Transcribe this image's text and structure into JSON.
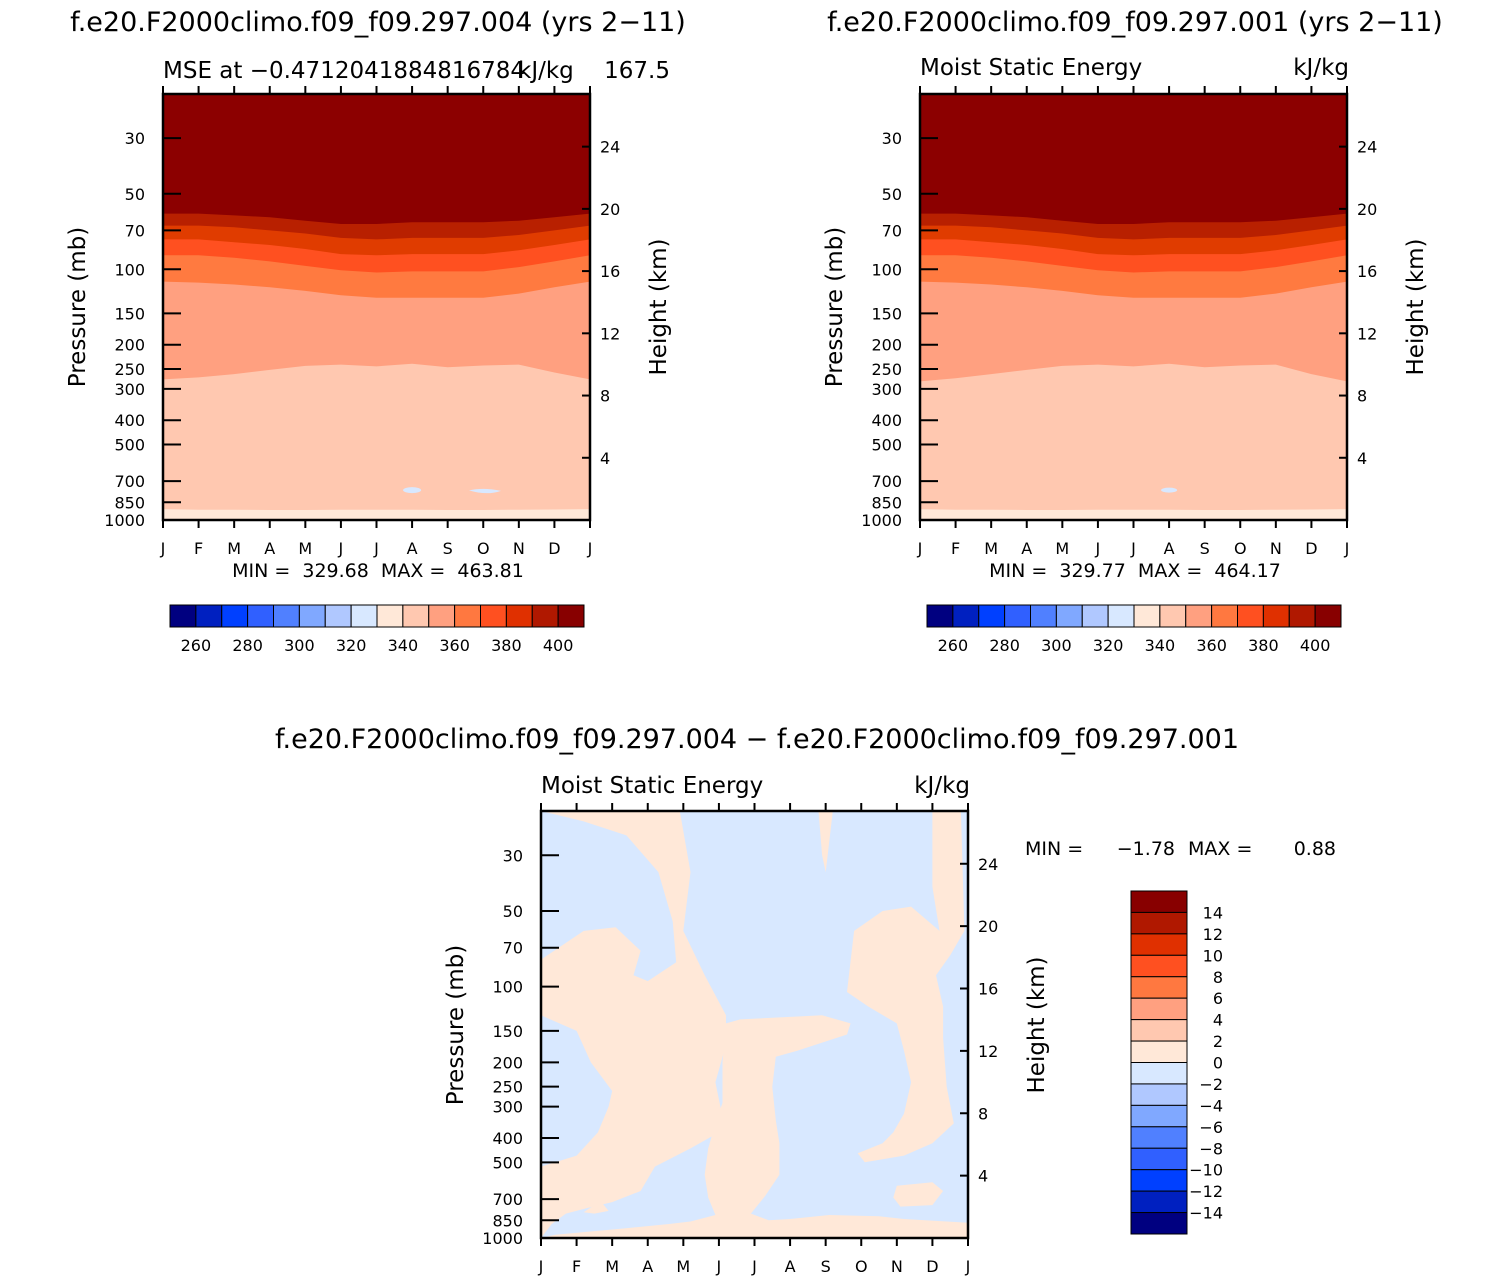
{
  "chart_data": [
    {
      "type": "heatmap",
      "title": "f.e20.F2000climo.f09_f09.297.004 (yrs 2−11)",
      "subtitle_left": "MSE at −0.4712041884816784",
      "subtitle_right": "kJ/kg",
      "subtitle_right2": "167.5",
      "ylabel": "Pressure (mb)",
      "y2label": "Height (km)",
      "x_ticks": [
        "J",
        "F",
        "M",
        "A",
        "M",
        "J",
        "J",
        "A",
        "S",
        "O",
        "N",
        "D",
        "J"
      ],
      "y_ticks": [
        "30",
        "50",
        "70",
        "100",
        "150",
        "200",
        "250",
        "300",
        "400",
        "500",
        "700",
        "850",
        "1000"
      ],
      "y_tick_values": [
        30,
        50,
        70,
        100,
        150,
        200,
        250,
        300,
        400,
        500,
        700,
        850,
        1000
      ],
      "y2_ticks": [
        "24",
        "20",
        "16",
        "12",
        "8",
        "4"
      ],
      "ylim": [
        1000,
        20
      ],
      "stats": "MIN =  329.68  MAX =  463.81",
      "colorbar_labels": [
        "260",
        "280",
        "300",
        "320",
        "340",
        "360",
        "380",
        "400"
      ],
      "colorbar_colors": [
        "#000080",
        "#0020c0",
        "#0040ff",
        "#3060ff",
        "#5080ff",
        "#80a8ff",
        "#b0c8ff",
        "#d8e8ff",
        "#ffe8d8",
        "#ffc8b0",
        "#ffa080",
        "#ff7840",
        "#ff5020",
        "#e03000",
        "#b01800",
        "#880000"
      ],
      "layers": [
        {
          "level": "400+",
          "color": "#8c0000",
          "boundary_p": [
            55,
            55,
            56,
            57,
            58,
            58,
            58,
            57,
            57,
            57,
            57,
            56,
            55
          ]
        },
        {
          "level": "390-400",
          "color": "#b82000",
          "boundary_p": [
            60,
            60,
            61,
            62,
            64,
            66,
            66,
            65,
            65,
            65,
            64,
            62,
            60
          ]
        },
        {
          "level": "380-390",
          "color": "#e03c00",
          "boundary_p": [
            67,
            67,
            68,
            70,
            72,
            75,
            76,
            75,
            75,
            75,
            73,
            70,
            67
          ]
        },
        {
          "level": "370-380",
          "color": "#ff5020",
          "boundary_p": [
            76,
            76,
            78,
            80,
            83,
            87,
            88,
            87,
            87,
            87,
            84,
            80,
            76
          ]
        },
        {
          "level": "360-370",
          "color": "#ff7a40",
          "boundary_p": [
            88,
            88,
            90,
            93,
            97,
            101,
            103,
            102,
            102,
            102,
            98,
            93,
            88
          ]
        },
        {
          "level": "350-360",
          "color": "#ffa080",
          "boundary_p": [
            112,
            113,
            115,
            118,
            122,
            127,
            130,
            130,
            130,
            130,
            125,
            118,
            112
          ]
        },
        {
          "level": "340-350",
          "color": "#ffc8b0",
          "boundary_p": [
            275,
            270,
            262,
            252,
            243,
            240,
            244,
            238,
            246,
            242,
            240,
            258,
            275
          ]
        },
        {
          "level": "330-340",
          "color": "#ffe8d8",
          "boundary_p": [
            905,
            910,
            910,
            912,
            912,
            910,
            910,
            910,
            912,
            912,
            910,
            908,
            905
          ]
        },
        {
          "level": "340-350 (surface)",
          "color": "#ffc8b0",
          "boundary_p": [
            1000,
            1000,
            1000,
            1000,
            1000,
            1000,
            1000,
            1000,
            1000,
            1000,
            1000,
            1000,
            1000
          ]
        }
      ]
    },
    {
      "type": "heatmap",
      "title": "f.e20.F2000climo.f09_f09.297.001 (yrs 2−11)",
      "subtitle_left": "Moist Static Energy",
      "subtitle_right": "kJ/kg",
      "ylabel": "Pressure (mb)",
      "y2label": "Height (km)",
      "x_ticks": [
        "J",
        "F",
        "M",
        "A",
        "M",
        "J",
        "J",
        "A",
        "S",
        "O",
        "N",
        "D",
        "J"
      ],
      "y_ticks": [
        "30",
        "50",
        "70",
        "100",
        "150",
        "200",
        "250",
        "300",
        "400",
        "500",
        "700",
        "850",
        "1000"
      ],
      "y_tick_values": [
        30,
        50,
        70,
        100,
        150,
        200,
        250,
        300,
        400,
        500,
        700,
        850,
        1000
      ],
      "y2_ticks": [
        "24",
        "20",
        "16",
        "12",
        "8",
        "4"
      ],
      "ylim": [
        1000,
        20
      ],
      "stats": "MIN =  329.77  MAX =  464.17",
      "colorbar_labels": [
        "260",
        "280",
        "300",
        "320",
        "340",
        "360",
        "380",
        "400"
      ],
      "colorbar_colors": [
        "#000080",
        "#0020c0",
        "#0040ff",
        "#3060ff",
        "#5080ff",
        "#80a8ff",
        "#b0c8ff",
        "#d8e8ff",
        "#ffe8d8",
        "#ffc8b0",
        "#ffa080",
        "#ff7840",
        "#ff5020",
        "#e03000",
        "#b01800",
        "#880000"
      ],
      "layers": [
        {
          "level": "400+",
          "color": "#8c0000",
          "boundary_p": [
            55,
            55,
            56,
            57,
            58,
            58,
            58,
            57,
            57,
            57,
            57,
            56,
            55
          ]
        },
        {
          "level": "390-400",
          "color": "#b82000",
          "boundary_p": [
            60,
            60,
            61,
            62,
            64,
            66,
            66,
            65,
            65,
            65,
            64,
            62,
            60
          ]
        },
        {
          "level": "380-390",
          "color": "#e03c00",
          "boundary_p": [
            67,
            67,
            68,
            70,
            72,
            75,
            76,
            75,
            75,
            75,
            73,
            70,
            67
          ]
        },
        {
          "level": "370-380",
          "color": "#ff5020",
          "boundary_p": [
            76,
            76,
            78,
            80,
            83,
            87,
            88,
            87,
            87,
            87,
            84,
            80,
            76
          ]
        },
        {
          "level": "360-370",
          "color": "#ff7a40",
          "boundary_p": [
            88,
            88,
            90,
            93,
            97,
            101,
            103,
            102,
            102,
            102,
            98,
            93,
            88
          ]
        },
        {
          "level": "350-360",
          "color": "#ffa080",
          "boundary_p": [
            112,
            113,
            115,
            118,
            122,
            127,
            130,
            130,
            130,
            130,
            125,
            118,
            112
          ]
        },
        {
          "level": "340-350",
          "color": "#ffc8b0",
          "boundary_p": [
            280,
            272,
            262,
            252,
            243,
            240,
            244,
            238,
            246,
            242,
            240,
            262,
            280
          ]
        },
        {
          "level": "330-340",
          "color": "#ffe8d8",
          "boundary_p": [
            905,
            910,
            910,
            912,
            912,
            910,
            910,
            910,
            912,
            912,
            910,
            908,
            905
          ]
        },
        {
          "level": "340-350 (surface)",
          "color": "#ffc8b0",
          "boundary_p": [
            1000,
            1000,
            1000,
            1000,
            1000,
            1000,
            1000,
            1000,
            1000,
            1000,
            1000,
            1000,
            1000
          ]
        }
      ]
    },
    {
      "type": "heatmap",
      "title": "f.e20.F2000climo.f09_f09.297.004 − f.e20.F2000climo.f09_f09.297.001",
      "subtitle_left": "Moist Static Energy",
      "subtitle_right": "kJ/kg",
      "ylabel": "Pressure (mb)",
      "y2label": "Height (km)",
      "x_ticks": [
        "J",
        "F",
        "M",
        "A",
        "M",
        "J",
        "J",
        "A",
        "S",
        "O",
        "N",
        "D",
        "J"
      ],
      "y_ticks": [
        "30",
        "50",
        "70",
        "100",
        "150",
        "200",
        "250",
        "300",
        "400",
        "500",
        "700",
        "850",
        "1000"
      ],
      "y_tick_values": [
        30,
        50,
        70,
        100,
        150,
        200,
        250,
        300,
        400,
        500,
        700,
        850,
        1000
      ],
      "y2_ticks": [
        "24",
        "20",
        "16",
        "12",
        "8",
        "4"
      ],
      "ylim": [
        1000,
        20
      ],
      "stats_min_label": "MIN =",
      "stats_min": "−1.78",
      "stats_max_label": "MAX =",
      "stats_max": "0.88",
      "background_level": "−2 to 0",
      "background_color": "#d8e8ff",
      "positive_level": "0 to 2",
      "positive_color": "#ffe8d8",
      "positive_regions": [
        [
          [
            0,
            20
          ],
          [
            3.9,
            20
          ],
          [
            4.2,
            35
          ],
          [
            4.0,
            60
          ],
          [
            4.6,
            90
          ],
          [
            5.2,
            130
          ],
          [
            5.2,
            170
          ],
          [
            4.9,
            240
          ],
          [
            5.1,
            330
          ],
          [
            5.0,
            380
          ],
          [
            4.2,
            440
          ],
          [
            3.2,
            520
          ],
          [
            2.8,
            650
          ],
          [
            2.0,
            720
          ],
          [
            1.3,
            760
          ],
          [
            0.7,
            800
          ],
          [
            0.3,
            880
          ],
          [
            0,
            1000
          ],
          [
            0,
            520
          ],
          [
            1.0,
            470
          ],
          [
            1.6,
            380
          ],
          [
            1.9,
            300
          ],
          [
            2.0,
            260
          ],
          [
            1.4,
            200
          ],
          [
            1.0,
            150
          ],
          [
            0,
            130
          ],
          [
            0,
            78
          ],
          [
            1.2,
            60
          ],
          [
            2.1,
            58
          ],
          [
            2.8,
            72
          ],
          [
            2.6,
            90
          ],
          [
            3.0,
            95
          ],
          [
            3.8,
            80
          ],
          [
            3.7,
            55
          ],
          [
            3.3,
            35
          ],
          [
            2.4,
            25
          ],
          [
            1.2,
            22
          ]
        ],
        [
          [
            5.1,
            200
          ],
          [
            5.2,
            140
          ],
          [
            5.6,
            135
          ],
          [
            7.9,
            130
          ],
          [
            8.7,
            140
          ],
          [
            8.6,
            155
          ],
          [
            7.2,
            180
          ],
          [
            6.6,
            190
          ],
          [
            6.5,
            250
          ],
          [
            6.6,
            340
          ],
          [
            6.7,
            420
          ],
          [
            6.7,
            560
          ],
          [
            6.3,
            680
          ],
          [
            5.9,
            800
          ],
          [
            6.4,
            850
          ],
          [
            7.0,
            840
          ],
          [
            8.1,
            810
          ],
          [
            9.5,
            820
          ],
          [
            10.2,
            840
          ],
          [
            12,
            870
          ],
          [
            12,
            1000
          ],
          [
            0,
            1000
          ],
          [
            0.4,
            970
          ],
          [
            2.2,
            920
          ],
          [
            3.6,
            880
          ],
          [
            4.2,
            860
          ],
          [
            4.9,
            810
          ],
          [
            4.7,
            690
          ],
          [
            4.6,
            560
          ],
          [
            4.7,
            440
          ],
          [
            4.9,
            350
          ],
          [
            5.1,
            290
          ]
        ],
        [
          [
            11.0,
            20
          ],
          [
            11.8,
            20
          ],
          [
            11.9,
            60
          ],
          [
            11.5,
            75
          ],
          [
            11.1,
            90
          ],
          [
            11.3,
            120
          ],
          [
            11.3,
            160
          ],
          [
            11.4,
            250
          ],
          [
            11.6,
            350
          ],
          [
            11.0,
            420
          ],
          [
            10.2,
            470
          ],
          [
            9.1,
            500
          ],
          [
            8.9,
            460
          ],
          [
            9.6,
            420
          ],
          [
            9.9,
            380
          ],
          [
            10.2,
            320
          ],
          [
            10.4,
            240
          ],
          [
            10.2,
            180
          ],
          [
            10.0,
            140
          ],
          [
            9.2,
            120
          ],
          [
            8.6,
            105
          ],
          [
            8.8,
            60
          ],
          [
            9.6,
            50
          ],
          [
            10.4,
            48
          ],
          [
            11.2,
            60
          ],
          [
            11.0,
            40
          ]
        ],
        [
          [
            7.8,
            20
          ],
          [
            8.2,
            20
          ],
          [
            8.0,
            35
          ],
          [
            7.9,
            30
          ]
        ],
        [
          [
            0.6,
            540
          ],
          [
            1.6,
            520
          ],
          [
            1.9,
            590
          ],
          [
            2.0,
            660
          ],
          [
            1.7,
            720
          ],
          [
            1.9,
            780
          ],
          [
            1.5,
            800
          ],
          [
            1.2,
            790
          ],
          [
            1.5,
            740
          ],
          [
            1.1,
            700
          ],
          [
            1.4,
            640
          ],
          [
            1.1,
            600
          ]
        ],
        [
          [
            10.0,
            620
          ],
          [
            11.0,
            600
          ],
          [
            11.3,
            650
          ],
          [
            11.0,
            740
          ],
          [
            10.1,
            750
          ],
          [
            9.9,
            690
          ]
        ]
      ],
      "colorbar_labels": [
        "14",
        "12",
        "10",
        "8",
        "6",
        "4",
        "2",
        "0",
        "−2",
        "−4",
        "−6",
        "−8",
        "−10",
        "−12",
        "−14"
      ],
      "colorbar_colors": [
        "#880000",
        "#b01800",
        "#e03000",
        "#ff5020",
        "#ff7840",
        "#ffa080",
        "#ffc8b0",
        "#ffe8d8",
        "#d8e8ff",
        "#b0c8ff",
        "#80a8ff",
        "#5080ff",
        "#3060ff",
        "#0040ff",
        "#0020c0",
        "#000080"
      ]
    }
  ]
}
